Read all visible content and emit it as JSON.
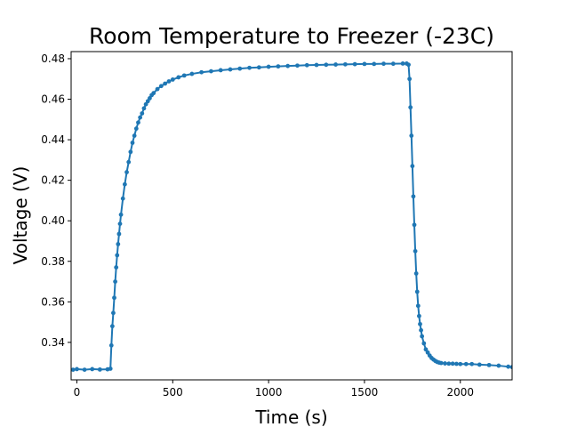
{
  "chart_data": {
    "type": "line",
    "title": "Room Temperature to Freezer (-23C)",
    "xlabel": "Time (s)",
    "ylabel": "Voltage (V)",
    "xlim": [
      -30,
      2270
    ],
    "ylim": [
      0.3215,
      0.4835
    ],
    "xticks": [
      0,
      500,
      1000,
      1500,
      2000
    ],
    "yticks": [
      0.34,
      0.36,
      0.38,
      0.4,
      0.42,
      0.44,
      0.46,
      0.48
    ],
    "ytick_labels": [
      "0.34",
      "0.36",
      "0.38",
      "0.40",
      "0.42",
      "0.44",
      "0.46",
      "0.48"
    ],
    "grid": false,
    "series_color": "#1f77b4",
    "series": [
      {
        "x": [
          -20,
          0,
          40,
          80,
          120,
          160,
          175,
          180,
          185,
          190,
          195,
          200,
          205,
          210,
          215,
          220,
          225,
          230,
          240,
          250,
          260,
          270,
          280,
          290,
          300,
          310,
          320,
          330,
          340,
          350,
          360,
          370,
          380,
          390,
          400,
          420,
          440,
          460,
          480,
          500,
          530,
          560,
          600,
          650,
          700,
          750,
          800,
          850,
          900,
          950,
          1000,
          1050,
          1100,
          1150,
          1200,
          1250,
          1300,
          1350,
          1400,
          1450,
          1500,
          1550,
          1600,
          1650,
          1700,
          1720,
          1730,
          1735,
          1740,
          1745,
          1750,
          1755,
          1760,
          1765,
          1770,
          1775,
          1780,
          1785,
          1790,
          1795,
          1800,
          1810,
          1820,
          1830,
          1840,
          1850,
          1860,
          1870,
          1880,
          1890,
          1900,
          1920,
          1940,
          1960,
          1980,
          2000,
          2030,
          2060,
          2100,
          2150,
          2200,
          2250,
          2270
        ],
        "y": [
          0.3265,
          0.3268,
          0.3265,
          0.3268,
          0.3266,
          0.3267,
          0.327,
          0.3385,
          0.348,
          0.3545,
          0.362,
          0.37,
          0.377,
          0.383,
          0.3885,
          0.3935,
          0.3985,
          0.403,
          0.411,
          0.418,
          0.424,
          0.429,
          0.434,
          0.4385,
          0.442,
          0.4455,
          0.4485,
          0.451,
          0.453,
          0.4555,
          0.4575,
          0.459,
          0.4605,
          0.462,
          0.463,
          0.465,
          0.4665,
          0.4677,
          0.4688,
          0.4697,
          0.4708,
          0.4717,
          0.4725,
          0.4733,
          0.4738,
          0.4743,
          0.4747,
          0.4751,
          0.4755,
          0.4757,
          0.476,
          0.4762,
          0.4764,
          0.4766,
          0.4768,
          0.4769,
          0.477,
          0.4771,
          0.4772,
          0.4773,
          0.4774,
          0.4774,
          0.4775,
          0.4775,
          0.4776,
          0.4776,
          0.477,
          0.47,
          0.456,
          0.442,
          0.427,
          0.412,
          0.398,
          0.385,
          0.374,
          0.365,
          0.358,
          0.353,
          0.349,
          0.346,
          0.343,
          0.3395,
          0.3365,
          0.335,
          0.3335,
          0.3323,
          0.3315,
          0.3308,
          0.3303,
          0.33,
          0.3298,
          0.3296,
          0.3295,
          0.3295,
          0.3294,
          0.3293,
          0.3293,
          0.3293,
          0.329,
          0.3288,
          0.3285,
          0.328,
          0.3278
        ]
      }
    ]
  }
}
